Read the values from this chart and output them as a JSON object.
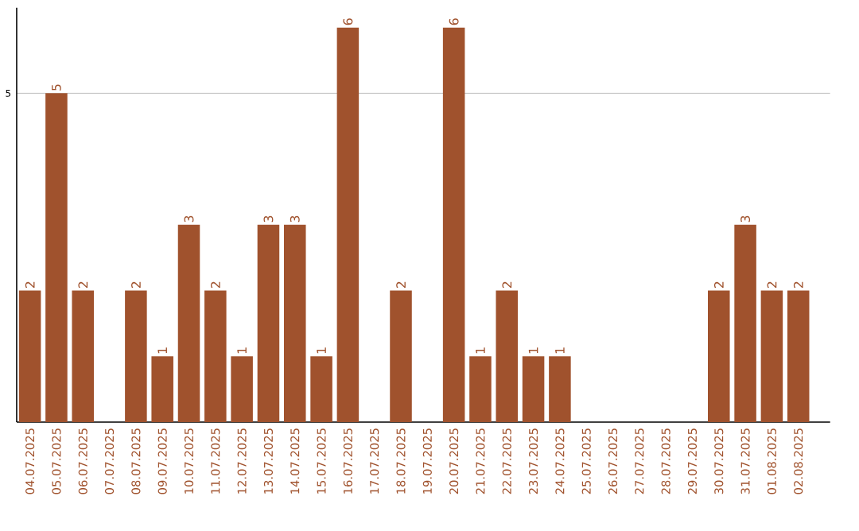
{
  "chart_data": {
    "type": "bar",
    "categories": [
      "04.07.2025",
      "05.07.2025",
      "06.07.2025",
      "07.07.2025",
      "08.07.2025",
      "09.07.2025",
      "10.07.2025",
      "11.07.2025",
      "12.07.2025",
      "13.07.2025",
      "14.07.2025",
      "15.07.2025",
      "16.07.2025",
      "17.07.2025",
      "18.07.2025",
      "19.07.2025",
      "20.07.2025",
      "21.07.2025",
      "22.07.2025",
      "23.07.2025",
      "24.07.2025",
      "25.07.2025",
      "26.07.2025",
      "27.07.2025",
      "28.07.2025",
      "29.07.2025",
      "30.07.2025",
      "31.07.2025",
      "01.08.2025",
      "02.08.2025"
    ],
    "values": [
      2,
      5,
      2,
      0,
      2,
      1,
      3,
      2,
      1,
      3,
      3,
      1,
      6,
      0,
      2,
      0,
      6,
      1,
      2,
      1,
      1,
      0,
      0,
      0,
      0,
      0,
      2,
      3,
      2,
      2
    ],
    "value_labels": [
      "2",
      "5",
      "2",
      null,
      "2",
      "1",
      "3",
      "2",
      "1",
      "3",
      "3",
      "1",
      "6",
      null,
      "2",
      null,
      "6",
      "1",
      "2",
      "1",
      "1",
      null,
      null,
      null,
      null,
      null,
      "2",
      "3",
      "2",
      "2"
    ],
    "color": "#a0522d",
    "ylim": [
      0,
      6.3
    ],
    "yticks": [
      5
    ],
    "grid": "y"
  }
}
